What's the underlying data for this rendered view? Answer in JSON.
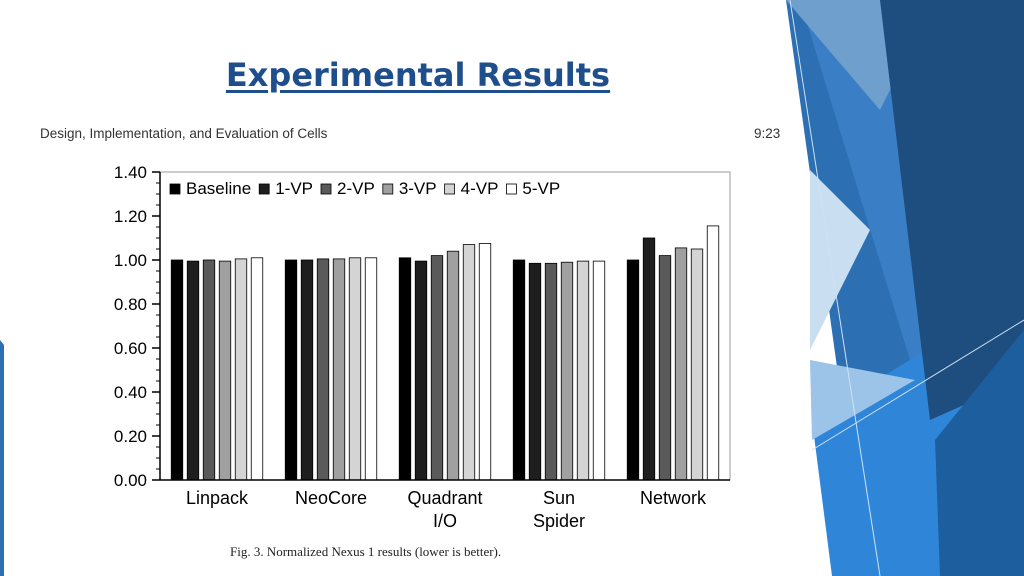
{
  "slide": {
    "title": "Experimental Results"
  },
  "paper": {
    "header_left": "Design, Implementation, and Evaluation of Cells",
    "header_right": "9:23",
    "caption": "Fig. 3.   Normalized Nexus 1 results (lower is better)."
  },
  "colors": {
    "title": "#1f4e8c",
    "deco_dark": "#1b4f83",
    "deco_mid": "#2f78c4",
    "deco_light": "#8ab6e0"
  },
  "chart_data": {
    "type": "bar",
    "title": "",
    "xlabel": "",
    "ylabel": "",
    "ylim": [
      0,
      1.4
    ],
    "yticks": [
      "0.00",
      "0.20",
      "0.40",
      "0.60",
      "0.80",
      "1.00",
      "1.20",
      "1.40"
    ],
    "ytick_values": [
      0,
      0.2,
      0.4,
      0.6,
      0.8,
      1.0,
      1.2,
      1.4
    ],
    "grid": false,
    "legend_position": "top",
    "categories": [
      [
        "Linpack"
      ],
      [
        "NeoCore"
      ],
      [
        "Quadrant",
        "I/O"
      ],
      [
        "Sun",
        "Spider"
      ],
      [
        "Network"
      ]
    ],
    "series": [
      {
        "name": "Baseline",
        "color": "#000000",
        "values": [
          1.0,
          1.0,
          1.01,
          1.0,
          1.0
        ]
      },
      {
        "name": "1-VP",
        "color": "#1e1e1e",
        "values": [
          0.995,
          1.0,
          0.995,
          0.985,
          1.1
        ]
      },
      {
        "name": "2-VP",
        "color": "#5a5a5a",
        "values": [
          1.0,
          1.005,
          1.02,
          0.985,
          1.02
        ]
      },
      {
        "name": "3-VP",
        "color": "#a0a0a0",
        "values": [
          0.995,
          1.005,
          1.04,
          0.99,
          1.055
        ]
      },
      {
        "name": "4-VP",
        "color": "#d4d4d4",
        "values": [
          1.005,
          1.01,
          1.07,
          0.995,
          1.05
        ]
      },
      {
        "name": "5-VP",
        "color": "#ffffff",
        "values": [
          1.01,
          1.01,
          1.075,
          0.995,
          1.155
        ]
      }
    ]
  }
}
